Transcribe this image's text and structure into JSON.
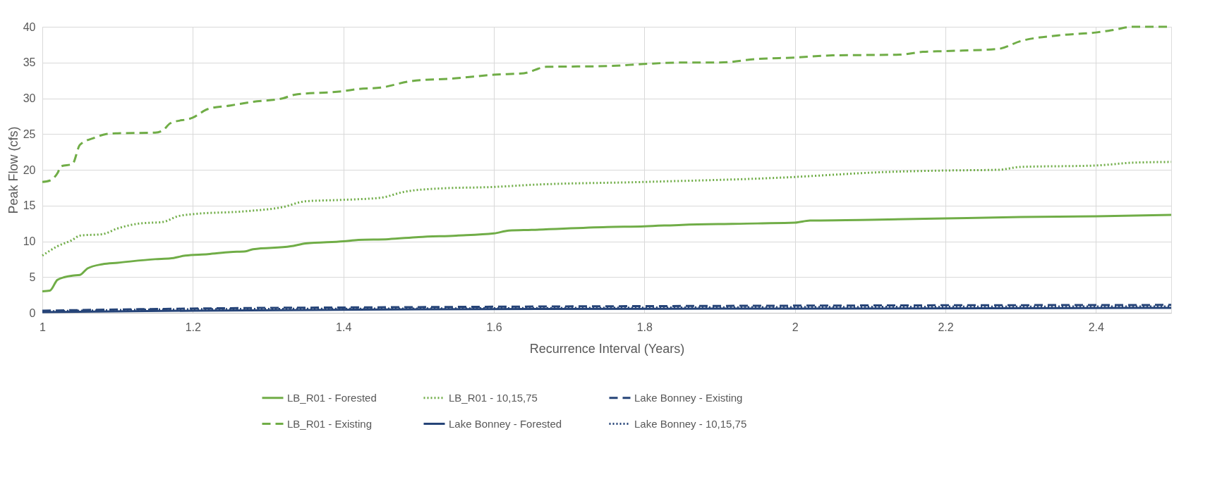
{
  "chart_data": {
    "type": "line",
    "xlabel": "Recurrence Interval (Years)",
    "ylabel": "Peak Flow (cfs)",
    "xlim": [
      1,
      2.5
    ],
    "xticks": [
      1,
      1.2,
      1.4,
      1.6,
      1.8,
      2,
      2.2,
      2.4
    ],
    "ylim": [
      0,
      40
    ],
    "yticks": [
      0,
      5,
      10,
      15,
      20,
      25,
      30,
      35,
      40
    ],
    "grid": true,
    "legend": "bottom",
    "marker": "none",
    "series": [
      {
        "name": "LB_R01 - Forested",
        "color": "#70ad47",
        "line_style": "solid",
        "x": [
          1.0,
          1.01,
          1.02,
          1.03,
          1.04,
          1.05,
          1.06,
          1.08,
          1.1,
          1.15,
          1.17,
          1.19,
          1.22,
          1.25,
          1.27,
          1.28,
          1.33,
          1.35,
          1.4,
          1.42,
          1.46,
          1.5,
          1.55,
          1.6,
          1.62,
          1.65,
          1.75,
          1.8,
          1.85,
          1.95,
          2.0,
          2.02,
          2.1,
          2.2,
          2.3,
          2.4,
          2.5
        ],
        "values": [
          3,
          3.1,
          4.6,
          5,
          5.2,
          5.3,
          6.2,
          6.8,
          7,
          7.5,
          7.6,
          8,
          8.2,
          8.5,
          8.6,
          8.9,
          9.3,
          9.7,
          10,
          10.2,
          10.3,
          10.6,
          10.8,
          11.1,
          11.5,
          11.6,
          12.0,
          12.1,
          12.3,
          12.5,
          12.6,
          12.9,
          13.0,
          13.2,
          13.4,
          13.5,
          13.7
        ]
      },
      {
        "name": "LB_R01 - Existing",
        "color": "#70ad47",
        "line_style": "dashed",
        "x": [
          1.0,
          1.01,
          1.02,
          1.025,
          1.04,
          1.05,
          1.07,
          1.085,
          1.1,
          1.15,
          1.16,
          1.17,
          1.2,
          1.22,
          1.25,
          1.28,
          1.32,
          1.335,
          1.4,
          1.42,
          1.45,
          1.49,
          1.55,
          1.6,
          1.64,
          1.67,
          1.75,
          1.8,
          1.85,
          1.9,
          1.95,
          2.0,
          2.05,
          2.14,
          2.17,
          2.2,
          2.27,
          2.3,
          2.35,
          2.4,
          2.42,
          2.45,
          2.5
        ],
        "values": [
          18.3,
          18.5,
          19.5,
          20.5,
          20.8,
          23.5,
          24.5,
          25,
          25.1,
          25.2,
          25.5,
          26.5,
          27.3,
          28.5,
          29,
          29.5,
          30,
          30.5,
          31,
          31.3,
          31.5,
          32.4,
          32.8,
          33.3,
          33.5,
          34.4,
          34.5,
          34.8,
          35,
          35,
          35.5,
          35.7,
          36,
          36.1,
          36.5,
          36.6,
          36.9,
          38,
          38.8,
          39.2,
          39.5,
          40,
          40
        ]
      },
      {
        "name": "LB_R01 - 10,15,75",
        "color": "#70ad47",
        "line_style": "dotted",
        "x": [
          1.0,
          1.02,
          1.04,
          1.05,
          1.08,
          1.1,
          1.13,
          1.16,
          1.18,
          1.2,
          1.27,
          1.32,
          1.35,
          1.4,
          1.45,
          1.48,
          1.53,
          1.6,
          1.65,
          1.8,
          2.0,
          2.05,
          2.1,
          2.2,
          2.27,
          2.3,
          2.4,
          2.45,
          2.5
        ],
        "values": [
          8,
          9.3,
          10.2,
          10.8,
          11,
          11.8,
          12.5,
          12.7,
          13.5,
          13.8,
          14.2,
          14.8,
          15.6,
          15.8,
          16.1,
          16.9,
          17.4,
          17.6,
          17.9,
          18.3,
          19,
          19.3,
          19.6,
          19.9,
          20,
          20.4,
          20.6,
          21,
          21.1
        ]
      },
      {
        "name": "Lake Bonney - Forested",
        "color": "#264478",
        "line_style": "solid",
        "x": [
          1.0,
          1.2,
          1.5,
          2.0,
          2.5
        ],
        "values": [
          0.1,
          0.3,
          0.5,
          0.6,
          0.7
        ]
      },
      {
        "name": "Lake Bonney - Existing",
        "color": "#264478",
        "line_style": "dashed",
        "x": [
          1.0,
          1.2,
          1.5,
          2.0,
          2.5
        ],
        "values": [
          0.3,
          0.6,
          0.8,
          1.0,
          1.1
        ]
      },
      {
        "name": "Lake Bonney - 10,15,75",
        "color": "#264478",
        "line_style": "dotted",
        "x": [
          1.0,
          1.2,
          1.5,
          2.0,
          2.5
        ],
        "values": [
          0.2,
          0.5,
          0.6,
          0.8,
          0.9
        ]
      }
    ]
  }
}
